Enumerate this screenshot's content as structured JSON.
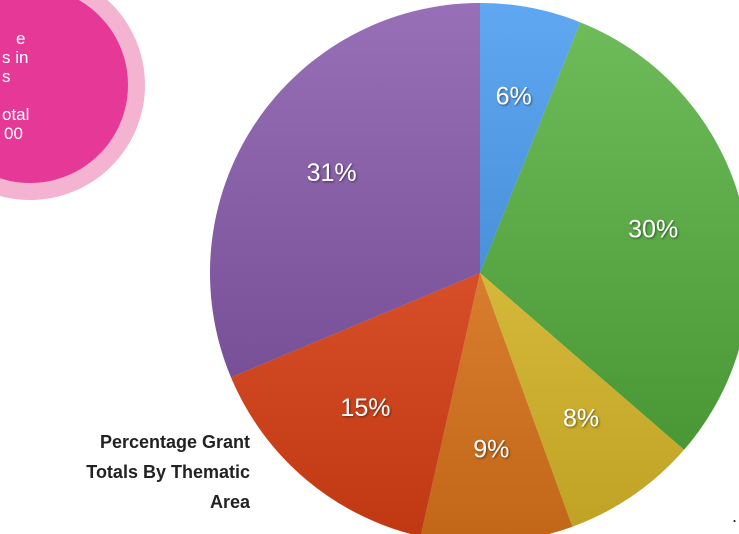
{
  "chart_data": {
    "type": "pie",
    "caption": [
      "Percentage Grant",
      "Totals By Thematic",
      "Area"
    ],
    "categories": [
      null,
      null,
      null,
      null,
      null,
      null
    ],
    "values": [
      6,
      30,
      8,
      9,
      15,
      31
    ],
    "value_labels": [
      "6%",
      "30%",
      "8%",
      "9%",
      "15%",
      "31%"
    ],
    "colors": [
      "#3d94ef",
      "#4fae37",
      "#e8c52a",
      "#ec7c1c",
      "#ea4416",
      "#8150a8"
    ]
  },
  "badge": {
    "lines": [
      "e",
      "s in",
      "s",
      "otal",
      "00"
    ]
  },
  "footnote": "."
}
